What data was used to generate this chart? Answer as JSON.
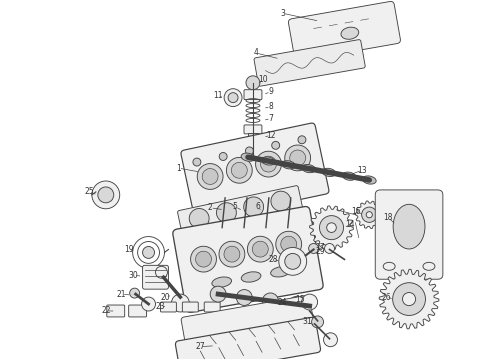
{
  "bg_color": "#ffffff",
  "line_color": "#444444",
  "label_color": "#333333",
  "fig_width": 4.9,
  "fig_height": 3.6,
  "dpi": 100,
  "lw": 0.65
}
